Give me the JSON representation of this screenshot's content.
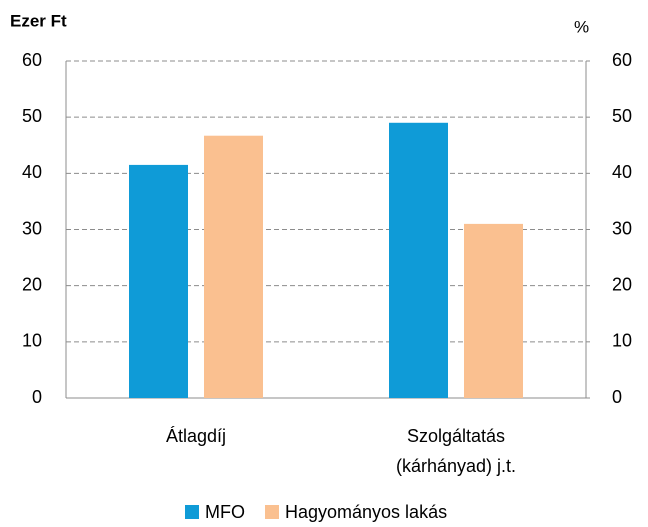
{
  "chart_data": {
    "type": "bar",
    "y_label": "Ezer Ft",
    "y2_label": "%",
    "categories": [
      [
        "Átlagdíj"
      ],
      [
        "Szolgáltatás",
        "(kárhányad) j.t."
      ]
    ],
    "series": [
      {
        "name": "MFO",
        "color": "#0f9bd7",
        "values": [
          41.5,
          49
        ]
      },
      {
        "name": "Hagyományos lakás",
        "color": "#fac090",
        "values": [
          46.7,
          31
        ]
      }
    ],
    "ylim": [
      0,
      60
    ],
    "yticks": [
      0,
      10,
      20,
      30,
      40,
      50,
      60
    ],
    "y2lim": [
      0,
      60
    ],
    "y2ticks": [
      0,
      10,
      20,
      30,
      40,
      50,
      60
    ],
    "grid": true,
    "legend": "bottom"
  }
}
